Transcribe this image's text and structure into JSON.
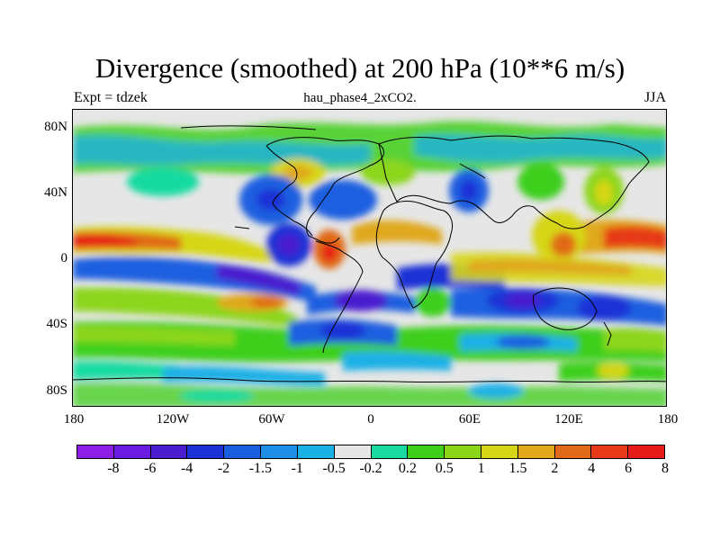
{
  "title": "Divergence (smoothed) at 200 hPa (10**6 m/s)",
  "subtitle": {
    "left": "Expt = tdzek",
    "center": "hau_phase4_2xCO2.",
    "right": "JJA"
  },
  "axes": {
    "y_ticks": [
      "80N",
      "40N",
      "0",
      "40S",
      "80S"
    ],
    "x_ticks": [
      "180",
      "120W",
      "60W",
      "0",
      "60E",
      "120E",
      "180"
    ]
  },
  "colorbar": {
    "colors": [
      "#8c1ee6",
      "#6a1de0",
      "#4a1ecf",
      "#1c32d6",
      "#1a5ee0",
      "#1f8ee6",
      "#1bb0e6",
      "#e6e6e6",
      "#19dba0",
      "#3ecf1a",
      "#8cd61a",
      "#d6d619",
      "#e0a81a",
      "#e06a19",
      "#e63a19",
      "#e61a19"
    ],
    "labels": [
      "-8",
      "-6",
      "-4",
      "-2",
      "-1.5",
      "-1",
      "-0.5",
      "-0.2",
      "0.2",
      "0.5",
      "1",
      "1.5",
      "2",
      "4",
      "6",
      "8"
    ]
  }
}
